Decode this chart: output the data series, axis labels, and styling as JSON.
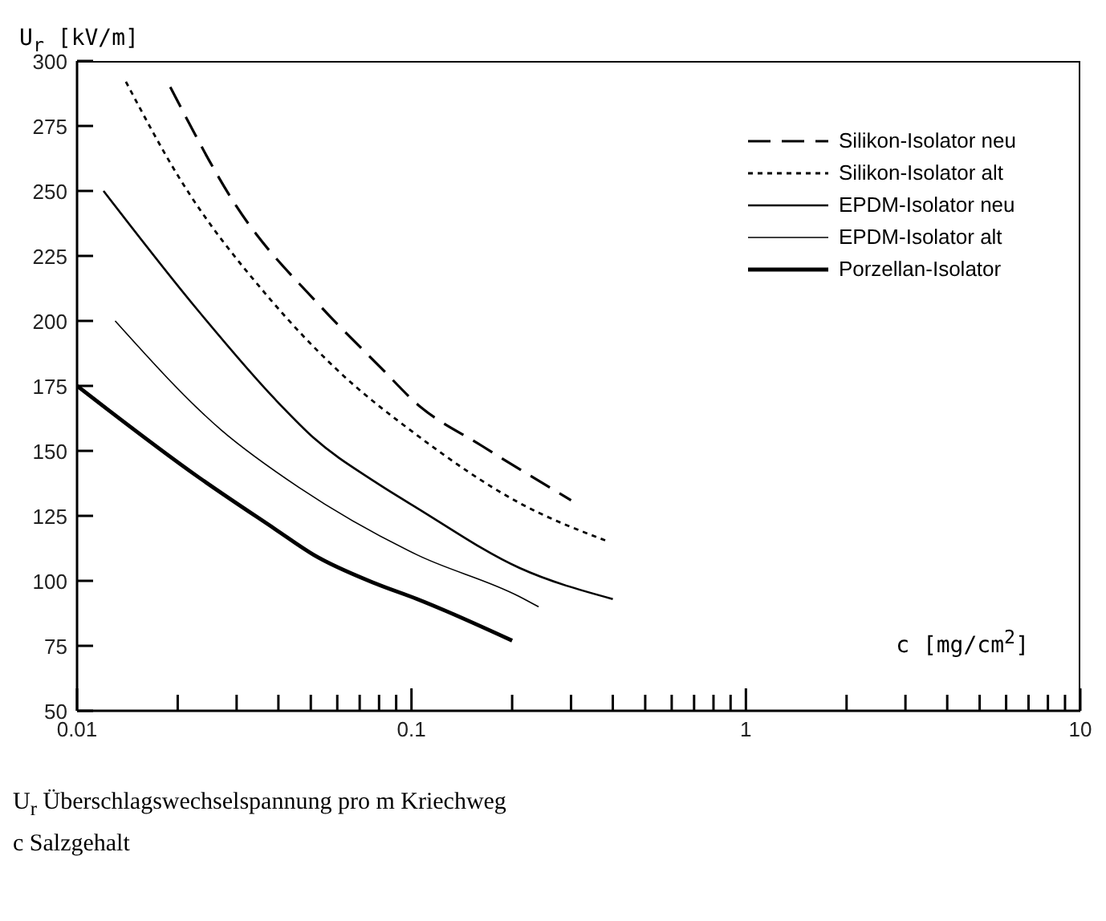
{
  "chart_data": {
    "type": "line",
    "ylabel": "U$_{r}$ [kV/m]",
    "xlabel": "c [mg/cm$^{2}$]",
    "log": "x",
    "xlim": [
      0.01,
      10
    ],
    "ylim": [
      50,
      300
    ],
    "xticks": [
      0.01,
      {
        "value": 0.02,
        "label": null
      },
      {
        "value": 0.03,
        "label": null
      },
      {
        "value": 0.04,
        "label": null
      },
      {
        "value": 0.05,
        "label": null
      },
      {
        "value": 0.06,
        "label": null
      },
      {
        "value": 0.07,
        "label": null
      },
      {
        "value": 0.08,
        "label": null
      },
      {
        "value": 0.09,
        "label": null
      },
      0.1,
      {
        "value": 0.2,
        "label": null
      },
      {
        "value": 0.3,
        "label": null
      },
      {
        "value": 0.4,
        "label": null
      },
      {
        "value": 0.5,
        "label": null
      },
      {
        "value": 0.6,
        "label": null
      },
      {
        "value": 0.7,
        "label": null
      },
      {
        "value": 0.8,
        "label": null
      },
      {
        "value": 0.9,
        "label": null
      },
      1,
      {
        "value": 2,
        "label": null
      },
      {
        "value": 3,
        "label": null
      },
      {
        "value": 4,
        "label": null
      },
      {
        "value": 5,
        "label": null
      },
      {
        "value": 6,
        "label": null
      },
      {
        "value": 7,
        "label": null
      },
      {
        "value": 8,
        "label": null
      },
      {
        "value": 9,
        "label": null
      },
      10
    ],
    "yticks": [
      50,
      75,
      100,
      125,
      150,
      175,
      200,
      225,
      250,
      275,
      300
    ],
    "grid": false,
    "legend": "top right",
    "marker": "none",
    "series": [
      {
        "name": "Silikon-Isolator neu",
        "color": "#000000",
        "line_style": "dashed",
        "x": [
          0.019,
          0.03,
          0.054,
          0.081,
          0.104,
          0.162,
          0.3
        ],
        "values": [
          290,
          244,
          205,
          182,
          168,
          152,
          131
        ]
      },
      {
        "name": "Silikon-Isolator alt",
        "color": "#000000",
        "line_style": "dotted",
        "x": [
          0.014,
          0.02,
          0.038,
          0.059,
          0.104,
          0.21,
          0.39
        ],
        "values": [
          292,
          256,
          208,
          182,
          156,
          130,
          115
        ]
      },
      {
        "name": "EPDM-Isolator neu",
        "color": "#000000",
        "line_style": "solid",
        "x": [
          0.012,
          0.023,
          0.039,
          0.051,
          0.078,
          0.104,
          0.21,
          0.4
        ],
        "values": [
          250,
          204,
          170,
          155,
          138,
          128,
          105,
          93
        ]
      },
      {
        "name": "EPDM-Isolator alt",
        "color": "#000000",
        "line_style": "solid",
        "x": [
          0.013,
          0.027,
          0.046,
          0.104,
          0.21,
          0.24
        ],
        "values": [
          200,
          158,
          136,
          110,
          94,
          90
        ]
      },
      {
        "name": "Porzellan-Isolator",
        "color": "#000000",
        "line_style": "solid",
        "x": [
          0.01,
          0.023,
          0.039,
          0.051,
          0.078,
          0.104,
          0.2
        ],
        "values": [
          175,
          140,
          120,
          110,
          99,
          93,
          77
        ]
      }
    ],
    "annotations": [
      "U$_{r}$ Überschlagswechselspannung pro m Kriechweg",
      "c Salzgehalt"
    ]
  }
}
